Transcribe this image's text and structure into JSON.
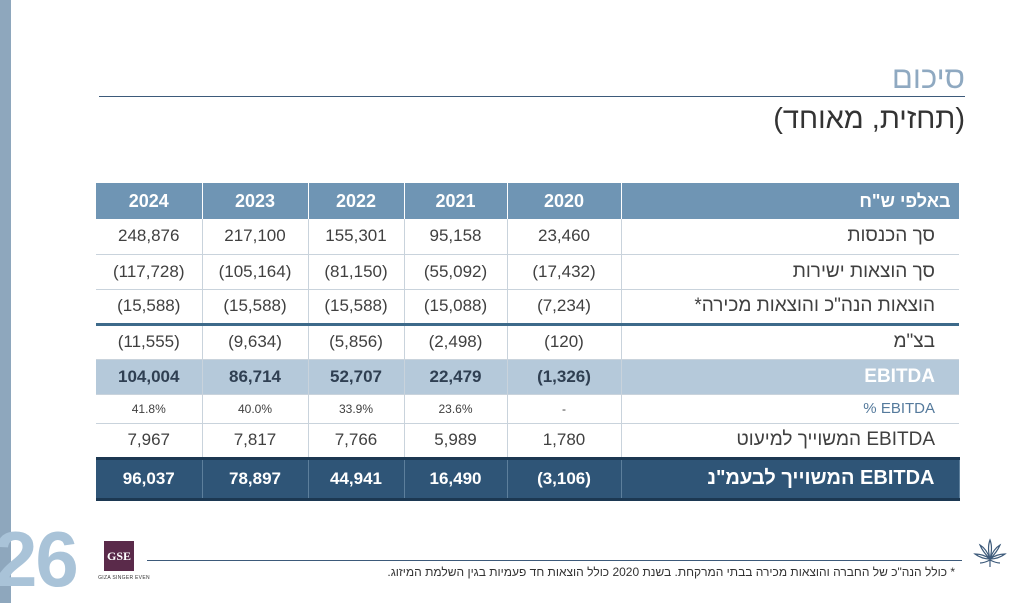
{
  "title": "סיכום",
  "subtitle": "(תחזית, מאוחד)",
  "table": {
    "header": {
      "label": "באלפי ש\"ח",
      "years": [
        "2020",
        "2021",
        "2022",
        "2023",
        "2024"
      ]
    },
    "rows": [
      {
        "label": "סך הכנסות",
        "values": [
          "23,460",
          "95,158",
          "155,301",
          "217,100",
          "248,876"
        ]
      },
      {
        "label": "סך הוצאות ישירות",
        "values": [
          "(17,432)",
          "(55,092)",
          "(81,150)",
          "(105,164)",
          "(117,728)"
        ]
      },
      {
        "label": "הוצאות הנה\"כ והוצאות מכירה*",
        "values": [
          "(7,234)",
          "(15,088)",
          "(15,588)",
          "(15,588)",
          "(15,588)"
        ]
      },
      {
        "label": "בצ\"מ",
        "values": [
          "(120)",
          "(2,498)",
          "(5,856)",
          "(9,634)",
          "(11,555)"
        ]
      },
      {
        "label": "EBITDA",
        "values": [
          "(1,326)",
          "22,479",
          "52,707",
          "86,714",
          "104,004"
        ]
      },
      {
        "label": "EBITDA %",
        "values": [
          "-",
          "23.6%",
          "33.9%",
          "40.0%",
          "41.8%"
        ]
      },
      {
        "label": "EBITDA המשוייך למיעוט",
        "values": [
          "1,780",
          "5,989",
          "7,766",
          "7,817",
          "7,967"
        ]
      },
      {
        "label": "EBITDA המשוייך לבעמ\"נ",
        "values": [
          "(3,106)",
          "16,490",
          "44,941",
          "78,897",
          "96,037"
        ]
      }
    ]
  },
  "page_number": "26",
  "logo": {
    "mark": "GSE",
    "text": "GIZA SINGER EVEN"
  },
  "footnote": "* כולל הנה\"כ של החברה והוצאות מכירה בבתי המרקחת. בשנת 2020 כולל הוצאות חד פעמיות בגין השלמת המיזוג.",
  "icons": {
    "leaf": "cannabis-leaf-icon"
  },
  "colors": {
    "header_bg": "#6f95b4",
    "ebitda_bg": "#b5c9da",
    "total_bg": "#2f5577",
    "title": "#8fa9c1",
    "page_number": "#a9c3d8"
  }
}
